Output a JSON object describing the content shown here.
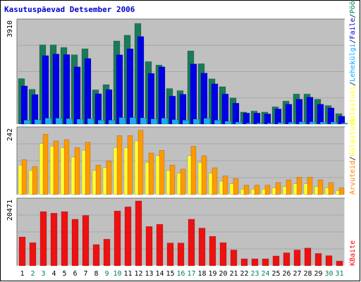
{
  "chart_data": {
    "type": "bar",
    "title": "Kasutuspäevad Detsember 2006",
    "categories": [
      "1",
      "2",
      "3",
      "4",
      "5",
      "6",
      "7",
      "8",
      "9",
      "10",
      "11",
      "12",
      "13",
      "14",
      "15",
      "16",
      "17",
      "18",
      "19",
      "20",
      "21",
      "22",
      "23",
      "24",
      "25",
      "26",
      "27",
      "28",
      "29",
      "30",
      "31"
    ],
    "weekend_days": [
      "2",
      "3",
      "9",
      "10",
      "16",
      "17",
      "23",
      "24",
      "30",
      "31"
    ],
    "panels": [
      {
        "name": "top",
        "ymax_label": "3910",
        "ymax": 3910,
        "legend": [
          {
            "text": "Külastusi",
            "color": "#ffff00"
          },
          {
            "text": "/",
            "color": "#000000"
          },
          {
            "text": "Lehekülgi",
            "color": "#00aaff"
          },
          {
            "text": "/",
            "color": "#000000"
          },
          {
            "text": "Faile",
            "color": "#0000cc"
          },
          {
            "text": "/",
            "color": "#000000"
          },
          {
            "text": "Pöördumisi",
            "color": "#00805f"
          }
        ],
        "series": [
          {
            "name": "Pöördumisi",
            "color": "#1a7a5a",
            "values": [
              1740,
              1330,
              3030,
              3030,
              2930,
              2650,
              2880,
              1310,
              1510,
              3180,
              3400,
              3850,
              2390,
              2260,
              1360,
              1280,
              2800,
              2310,
              1730,
              1430,
              1000,
              460,
              500,
              460,
              660,
              880,
              1150,
              1150,
              950,
              710,
              400
            ]
          },
          {
            "name": "Faile",
            "color": "#0000e6",
            "values": [
              1460,
              1130,
              2620,
              2680,
              2660,
              2190,
              2510,
              1160,
              1320,
              2650,
              2880,
              3350,
              1940,
              2190,
              1070,
              1140,
              2300,
              1950,
              1540,
              1150,
              800,
              420,
              420,
              390,
              580,
              760,
              950,
              1030,
              760,
              620,
              300
            ]
          },
          {
            "name": "Lehekülgi",
            "color": "#22aaee",
            "values": [
              150,
              170,
              230,
              230,
              210,
              190,
              210,
              150,
              150,
              250,
              250,
              240,
              200,
              230,
              170,
              150,
              190,
              220,
              150,
              110,
              80,
              40,
              40,
              40,
              60,
              70,
              90,
              90,
              80,
              80,
              40
            ]
          }
        ]
      },
      {
        "name": "middle",
        "ymax_label": "242",
        "ymax": 242,
        "legend": [
          {
            "text": "Arvuteid",
            "color": "#ff8000"
          },
          {
            "text": "/",
            "color": "#000000"
          },
          {
            "text": "Külastusi",
            "color": "#ffff00"
          }
        ],
        "series": [
          {
            "name": "Külastusi",
            "color": "#ffff33",
            "values": [
              110,
              90,
              190,
              180,
              175,
              140,
              165,
              90,
              100,
              175,
              175,
              200,
              120,
              145,
              90,
              80,
              145,
              120,
              80,
              50,
              40,
              20,
              20,
              20,
              25,
              30,
              40,
              40,
              30,
              25,
              15
            ]
          },
          {
            "name": "Arvuteid",
            "color": "#ff9900",
            "values": [
              130,
              105,
              225,
              200,
              205,
              175,
              195,
              110,
              125,
              220,
              220,
              240,
              155,
              165,
              110,
              95,
              180,
              145,
              100,
              70,
              60,
              35,
              35,
              35,
              45,
              55,
              65,
              65,
              55,
              45,
              25
            ]
          }
        ]
      },
      {
        "name": "bottom",
        "ymax_label": "20471",
        "ymax": 20471,
        "legend": [
          {
            "text": "KBaite",
            "color": "#ff0000"
          }
        ],
        "series": [
          {
            "name": "KBaite",
            "color": "#ee1111",
            "values": [
              9100,
              7300,
              17100,
              16600,
              17100,
              14700,
              15900,
              6700,
              8400,
              17300,
              18600,
              21000,
              12400,
              13100,
              7200,
              7200,
              14700,
              11900,
              9300,
              7300,
              5000,
              2200,
              2200,
              2200,
              3100,
              4100,
              5000,
              5600,
              3900,
              3200,
              1500
            ]
          }
        ]
      }
    ],
    "colors": {
      "background": "#c0c0c0",
      "title": "#0000cc",
      "weekday_label": "#000000",
      "weekend_label": "#00805f"
    }
  }
}
